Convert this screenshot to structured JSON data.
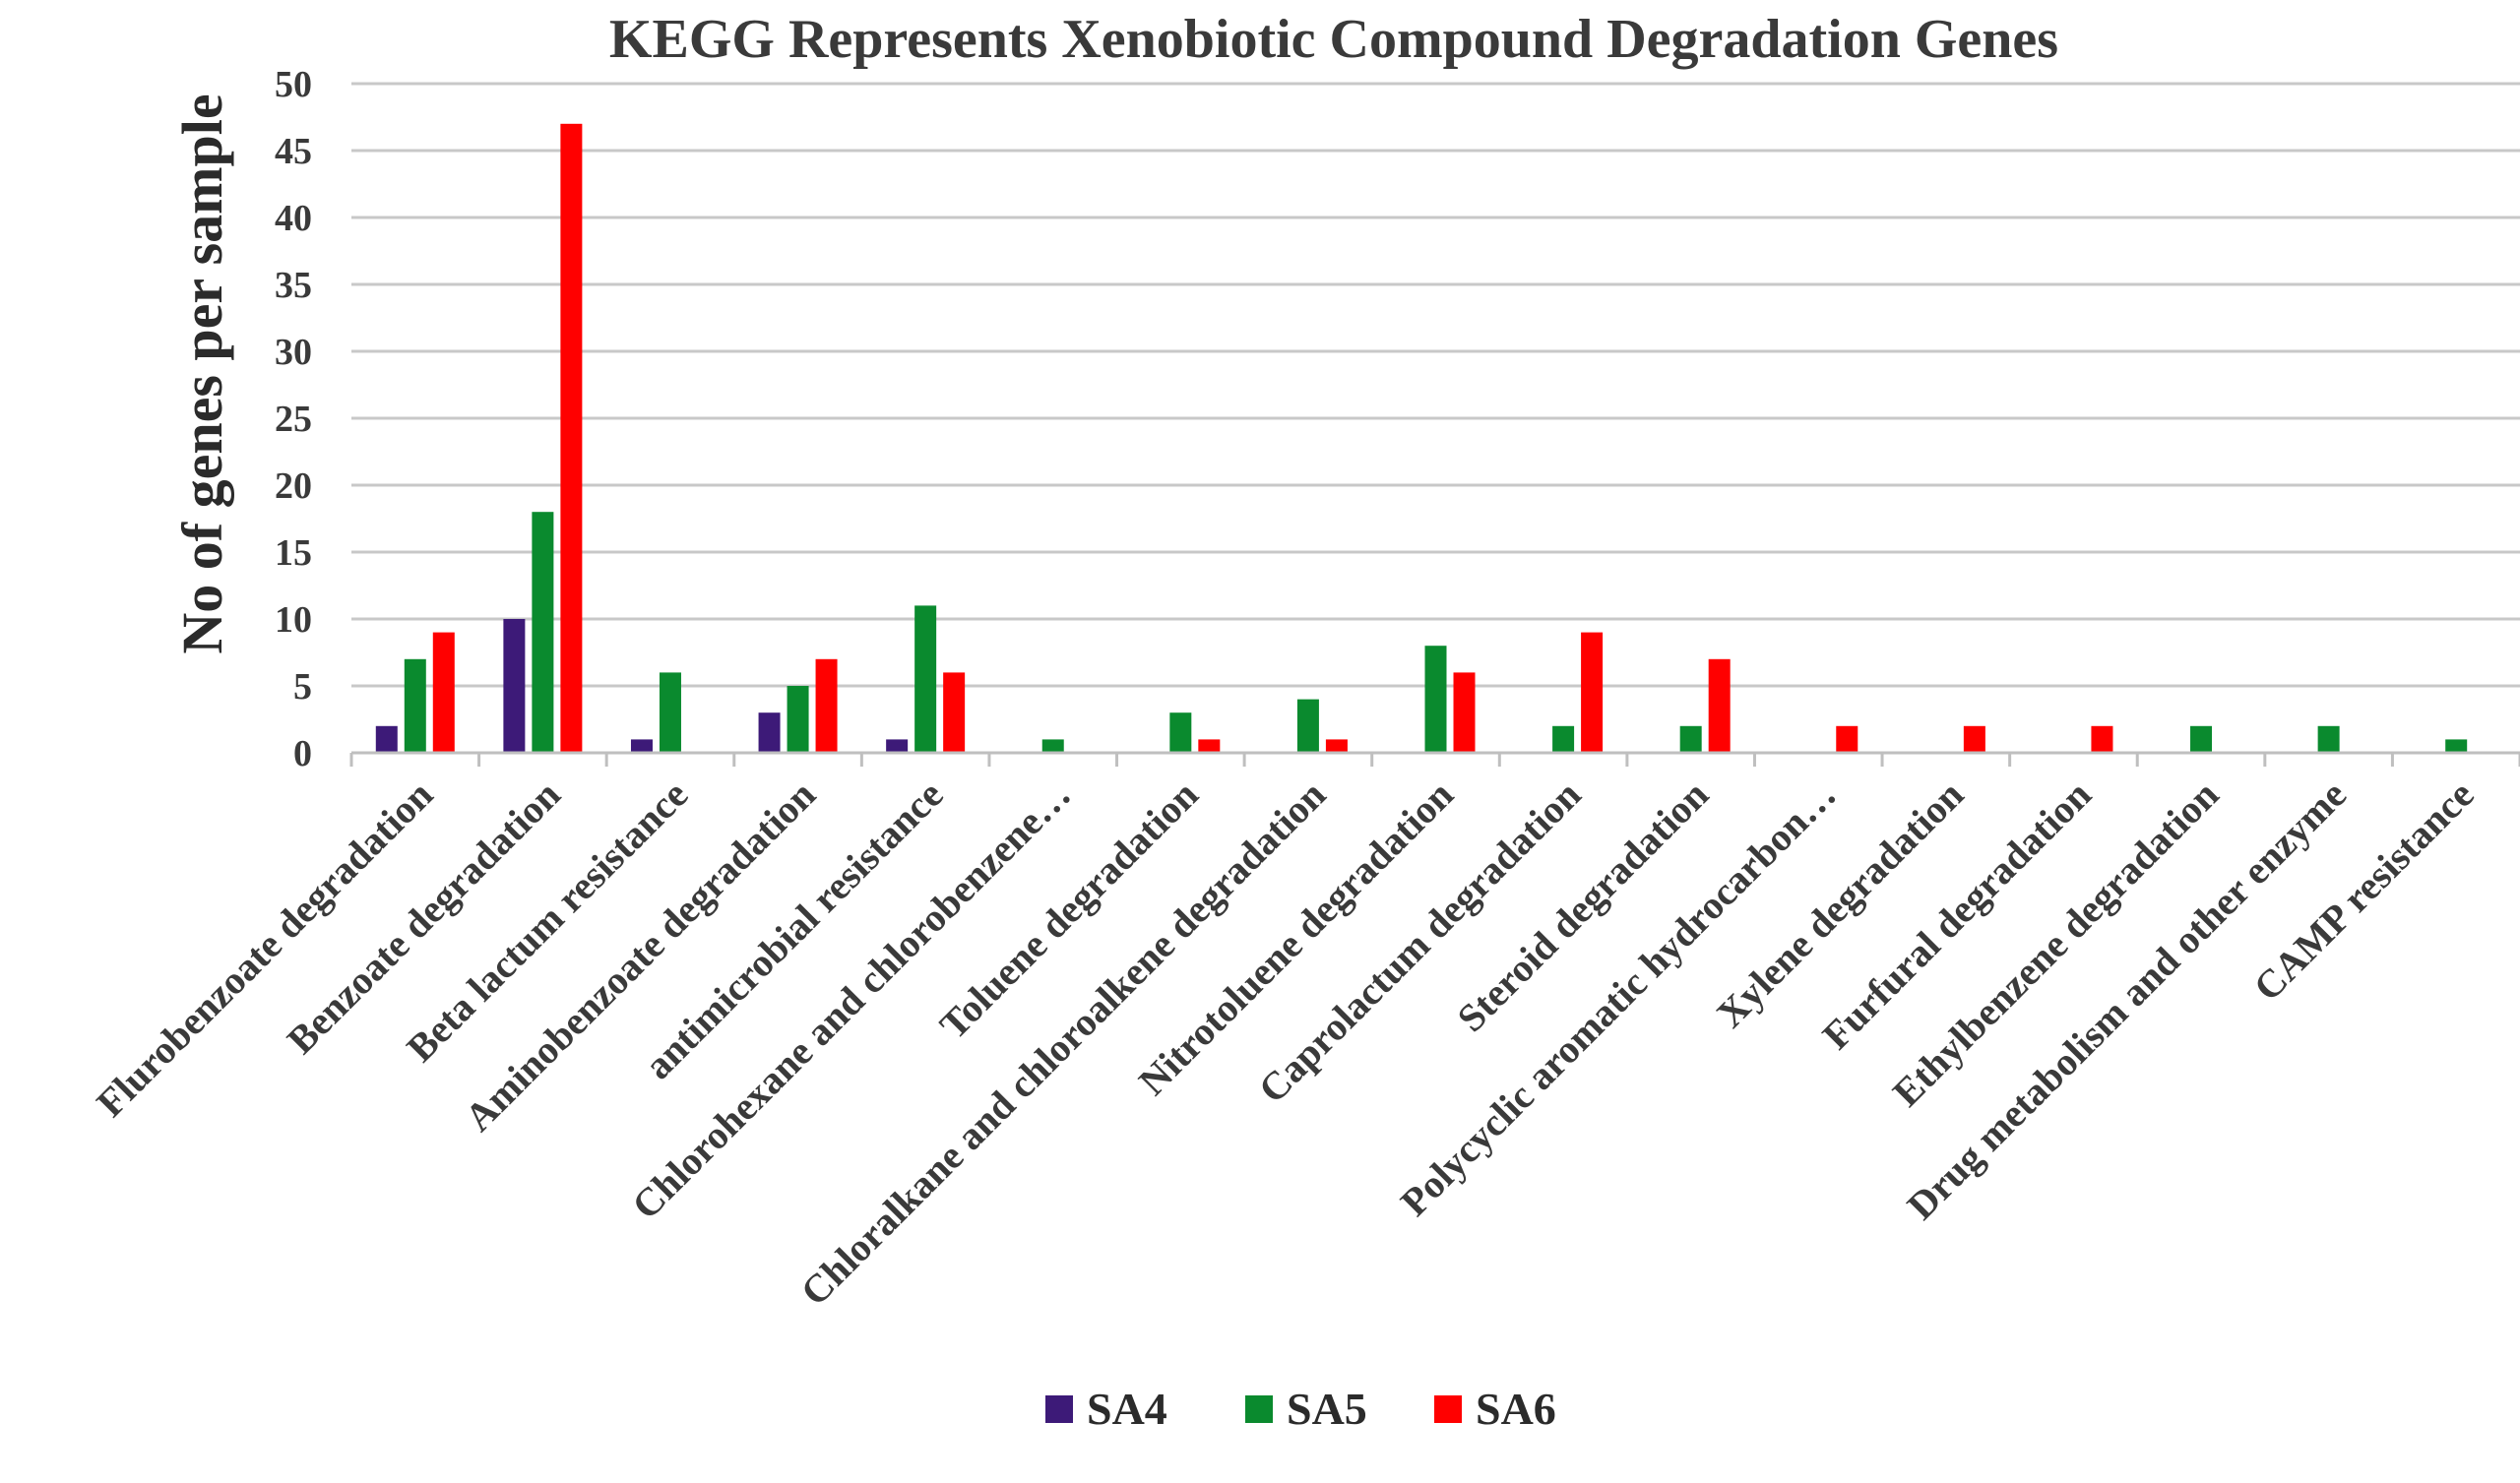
{
  "chart_data": {
    "type": "bar",
    "title": "KEGG Represents Xenobiotic Compound Degradation Genes",
    "xlabel": "",
    "ylabel": "No of genes per sample",
    "ylim": [
      0,
      50
    ],
    "yticks": [
      0,
      5,
      10,
      15,
      20,
      25,
      30,
      35,
      40,
      45,
      50
    ],
    "grid": true,
    "legend_position": "bottom",
    "categories": [
      "Flurobenzoate degradation",
      "Benzoate degradation",
      "Beta lactum resistance",
      "Aminobenzoate degradation",
      "antimicrobial resistance",
      "Chlorohexane and chlorobenzene…",
      "Toluene degradation",
      "Chloralkane and chloroalkene degradation",
      "Nitrotoluene degradation",
      "Caprolactum degradation",
      "Steroid degradation",
      "Polycyclic aromatic hydrocarbon…",
      "Xylene degradation",
      "Furfural degradation",
      "Ethylbenzene degradation",
      "Drug metabolism and other enzyme",
      "CAMP resistance"
    ],
    "series": [
      {
        "name": "SA4",
        "color": "#3d1a78",
        "values": [
          2,
          10,
          1,
          3,
          1,
          0,
          0,
          0,
          0,
          0,
          0,
          0,
          0,
          0,
          0,
          0,
          0
        ]
      },
      {
        "name": "SA5",
        "color": "#0a8a2e",
        "values": [
          7,
          18,
          6,
          5,
          11,
          1,
          3,
          4,
          8,
          2,
          2,
          0,
          0,
          0,
          2,
          2,
          1
        ]
      },
      {
        "name": "SA6",
        "color": "#ff0000",
        "values": [
          9,
          47,
          0,
          7,
          6,
          0,
          1,
          1,
          6,
          9,
          7,
          2,
          2,
          2,
          0,
          0,
          0
        ]
      }
    ]
  }
}
